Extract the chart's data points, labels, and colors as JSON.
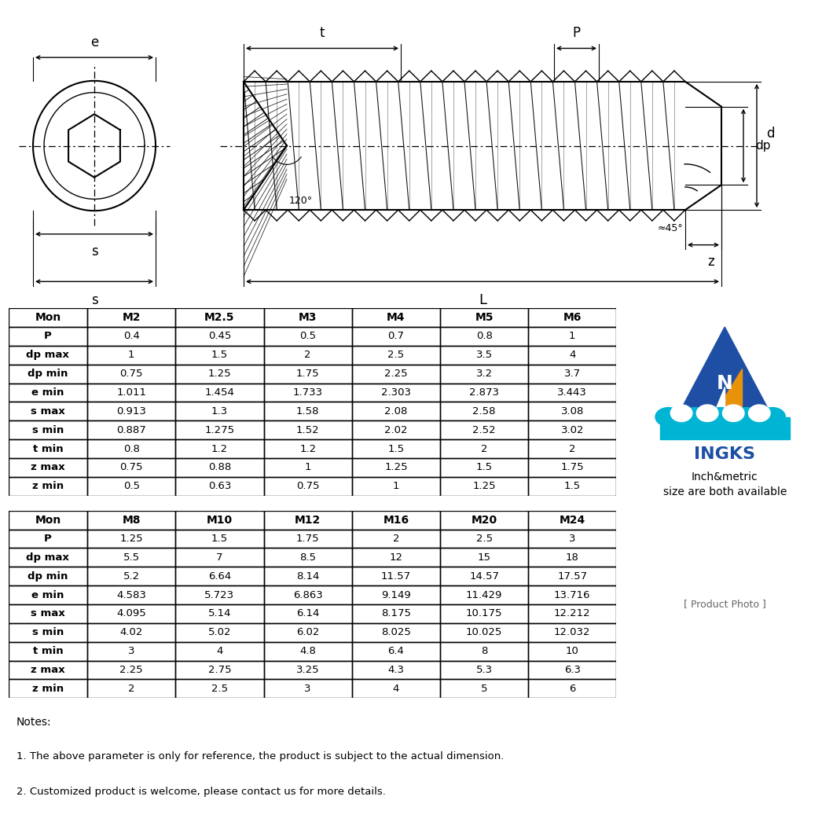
{
  "table1_headers": [
    "Mon",
    "M2",
    "M2.5",
    "M3",
    "M4",
    "M5",
    "M6"
  ],
  "table1_rows": [
    [
      "P",
      "0.4",
      "0.45",
      "0.5",
      "0.7",
      "0.8",
      "1"
    ],
    [
      "dp max",
      "1",
      "1.5",
      "2",
      "2.5",
      "3.5",
      "4"
    ],
    [
      "dp min",
      "0.75",
      "1.25",
      "1.75",
      "2.25",
      "3.2",
      "3.7"
    ],
    [
      "e min",
      "1.011",
      "1.454",
      "1.733",
      "2.303",
      "2.873",
      "3.443"
    ],
    [
      "s max",
      "0.913",
      "1.3",
      "1.58",
      "2.08",
      "2.58",
      "3.08"
    ],
    [
      "s min",
      "0.887",
      "1.275",
      "1.52",
      "2.02",
      "2.52",
      "3.02"
    ],
    [
      "t min",
      "0.8",
      "1.2",
      "1.2",
      "1.5",
      "2",
      "2"
    ],
    [
      "z max",
      "0.75",
      "0.88",
      "1",
      "1.25",
      "1.5",
      "1.75"
    ],
    [
      "z min",
      "0.5",
      "0.63",
      "0.75",
      "1",
      "1.25",
      "1.5"
    ]
  ],
  "table2_headers": [
    "Mon",
    "M8",
    "M10",
    "M12",
    "M16",
    "M20",
    "M24"
  ],
  "table2_rows": [
    [
      "P",
      "1.25",
      "1.5",
      "1.75",
      "2",
      "2.5",
      "3"
    ],
    [
      "dp max",
      "5.5",
      "7",
      "8.5",
      "12",
      "15",
      "18"
    ],
    [
      "dp min",
      "5.2",
      "6.64",
      "8.14",
      "11.57",
      "14.57",
      "17.57"
    ],
    [
      "e min",
      "4.583",
      "5.723",
      "6.863",
      "9.149",
      "11.429",
      "13.716"
    ],
    [
      "s max",
      "4.095",
      "5.14",
      "6.14",
      "8.175",
      "10.175",
      "12.212"
    ],
    [
      "s min",
      "4.02",
      "5.02",
      "6.02",
      "8.025",
      "10.025",
      "12.032"
    ],
    [
      "t min",
      "3",
      "4",
      "4.8",
      "6.4",
      "8",
      "10"
    ],
    [
      "z max",
      "2.25",
      "2.75",
      "3.25",
      "4.3",
      "5.3",
      "6.3"
    ],
    [
      "z min",
      "2",
      "2.5",
      "3",
      "4",
      "5",
      "6"
    ]
  ],
  "notes": [
    "Notes:",
    "1. The above parameter is only for reference, the product is subject to the actual dimension.",
    "2. Customized product is welcome, please contact us for more details."
  ],
  "bg_color": "#ffffff"
}
